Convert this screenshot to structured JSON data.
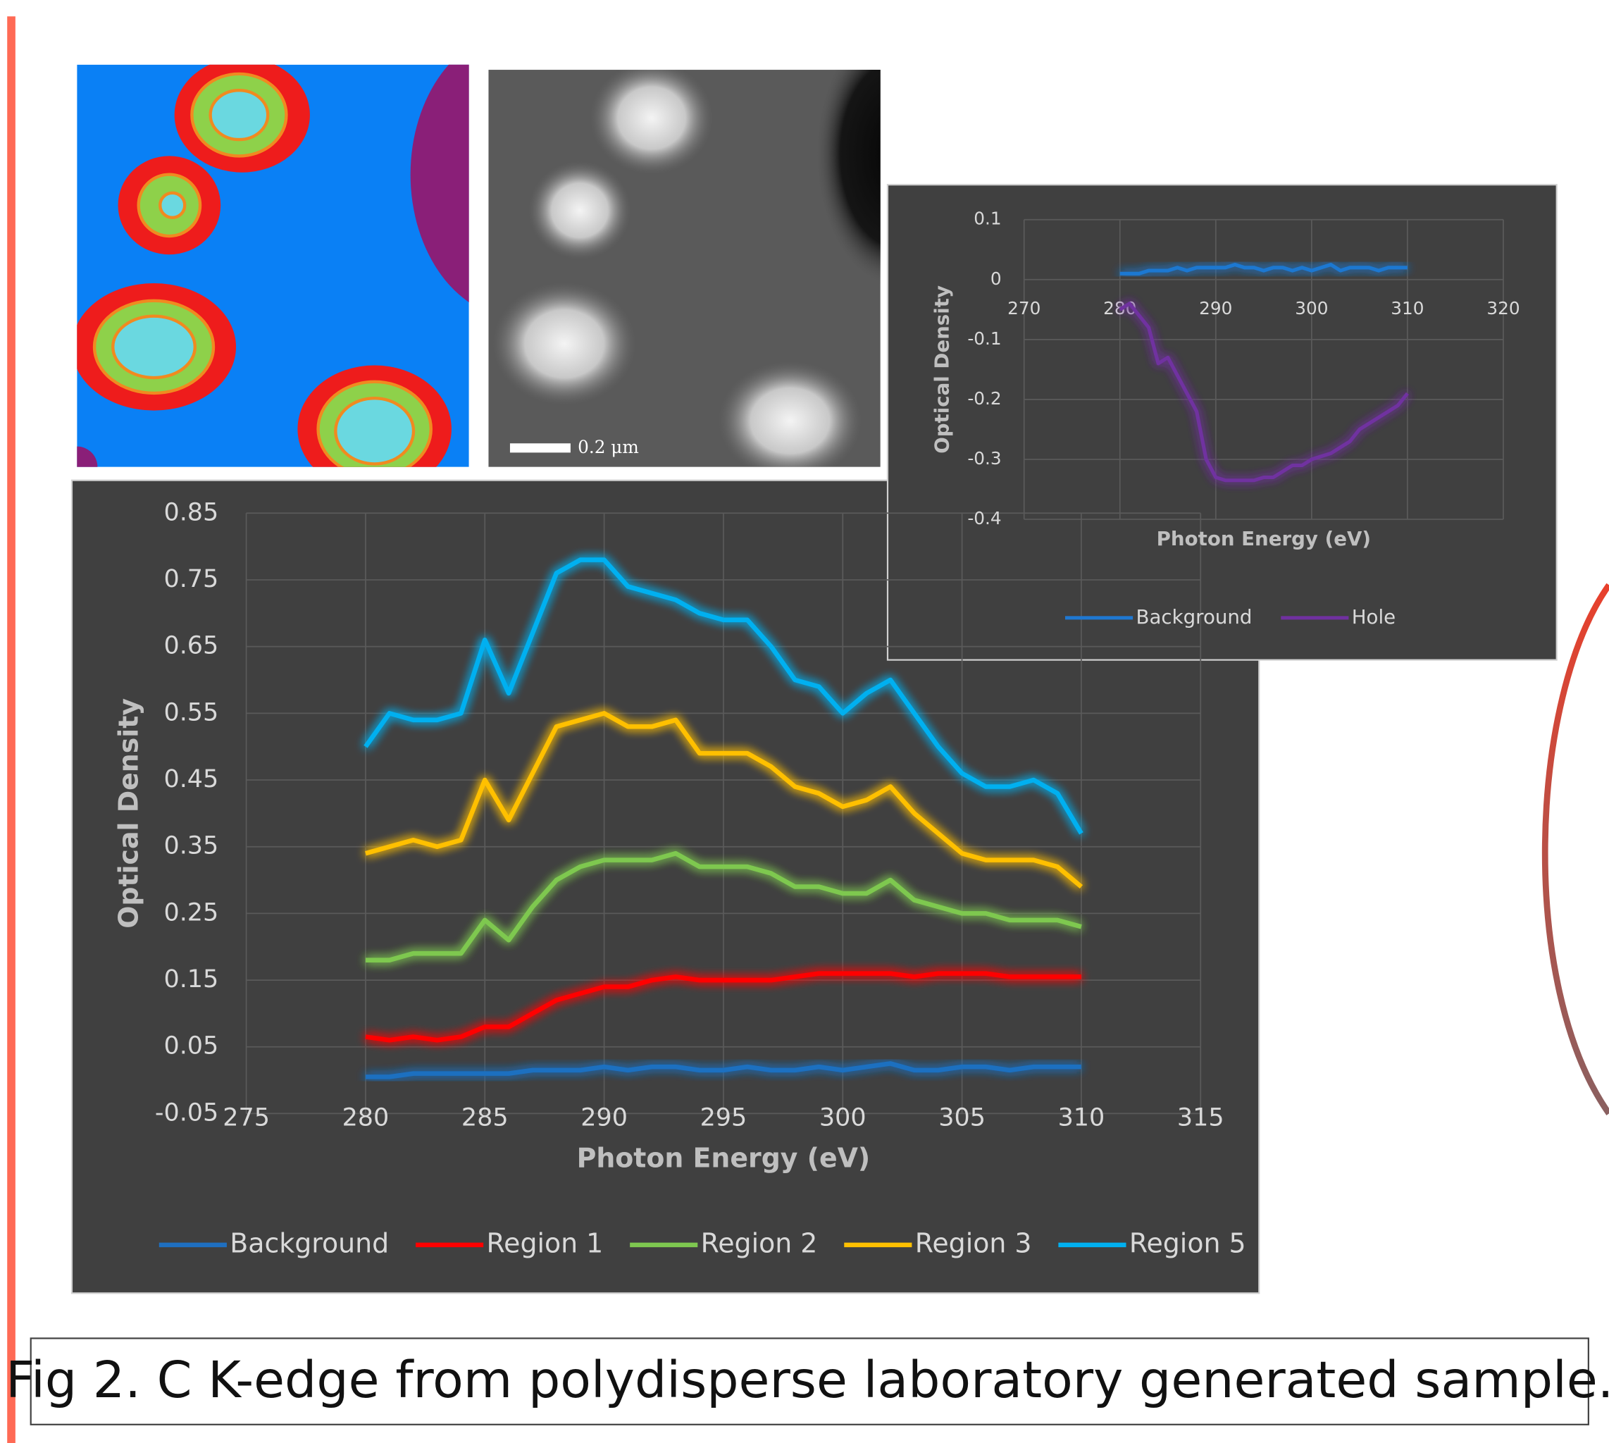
{
  "chart_data": [
    {
      "type": "line",
      "x_title": "Photon Energy (eV)",
      "y_title": "Optical Density",
      "x": [
        280,
        281,
        282,
        283,
        284,
        285,
        286,
        287,
        288,
        289,
        290,
        291,
        292,
        293,
        294,
        295,
        296,
        297,
        298,
        299,
        300,
        301,
        302,
        303,
        304,
        305,
        306,
        307,
        308,
        309,
        310
      ],
      "series": [
        {
          "name": "Background",
          "color": "#1f6fc0",
          "values": [
            0.005,
            0.005,
            0.01,
            0.01,
            0.01,
            0.01,
            0.01,
            0.015,
            0.015,
            0.015,
            0.02,
            0.015,
            0.02,
            0.02,
            0.015,
            0.015,
            0.02,
            0.015,
            0.015,
            0.02,
            0.015,
            0.02,
            0.025,
            0.015,
            0.015,
            0.02,
            0.02,
            0.015,
            0.02,
            0.02,
            0.02
          ]
        },
        {
          "name": "Region 1",
          "color": "#ff0000",
          "values": [
            0.065,
            0.06,
            0.065,
            0.06,
            0.065,
            0.08,
            0.08,
            0.1,
            0.12,
            0.13,
            0.14,
            0.14,
            0.15,
            0.155,
            0.15,
            0.15,
            0.15,
            0.15,
            0.155,
            0.16,
            0.16,
            0.16,
            0.16,
            0.155,
            0.16,
            0.16,
            0.16,
            0.155,
            0.155,
            0.155,
            0.155
          ]
        },
        {
          "name": "Region 2",
          "color": "#7ec850",
          "values": [
            0.18,
            0.18,
            0.19,
            0.19,
            0.19,
            0.24,
            0.21,
            0.26,
            0.3,
            0.32,
            0.33,
            0.33,
            0.33,
            0.34,
            0.32,
            0.32,
            0.32,
            0.31,
            0.29,
            0.29,
            0.28,
            0.28,
            0.3,
            0.27,
            0.26,
            0.25,
            0.25,
            0.24,
            0.24,
            0.24,
            0.23
          ]
        },
        {
          "name": "Region 3",
          "color": "#ffc000",
          "values": [
            0.34,
            0.35,
            0.36,
            0.35,
            0.36,
            0.45,
            0.39,
            0.46,
            0.53,
            0.54,
            0.55,
            0.53,
            0.53,
            0.54,
            0.49,
            0.49,
            0.49,
            0.47,
            0.44,
            0.43,
            0.41,
            0.42,
            0.44,
            0.4,
            0.37,
            0.34,
            0.33,
            0.33,
            0.33,
            0.32,
            0.29
          ]
        },
        {
          "name": "Region 5",
          "color": "#00b0f0",
          "values": [
            0.5,
            0.55,
            0.54,
            0.54,
            0.55,
            0.66,
            0.58,
            0.67,
            0.76,
            0.78,
            0.78,
            0.74,
            0.73,
            0.72,
            0.7,
            0.69,
            0.69,
            0.65,
            0.6,
            0.59,
            0.55,
            0.58,
            0.6,
            0.55,
            0.5,
            0.46,
            0.44,
            0.44,
            0.45,
            0.43,
            0.37
          ]
        }
      ],
      "xlim": [
        275,
        315
      ],
      "xticks": [
        275,
        280,
        285,
        290,
        295,
        300,
        305,
        310,
        315
      ],
      "ylim": [
        -0.05,
        0.85
      ],
      "yticks": [
        -0.05,
        0.05,
        0.15,
        0.25,
        0.35,
        0.45,
        0.55,
        0.65,
        0.75,
        0.85
      ],
      "grid": true,
      "legend": "bottom"
    },
    {
      "type": "line",
      "x_title": "Photon Energy (eV)",
      "y_title": "Optical Density",
      "x": [
        280,
        281,
        282,
        283,
        284,
        285,
        286,
        287,
        288,
        289,
        290,
        291,
        292,
        293,
        294,
        295,
        296,
        297,
        298,
        299,
        300,
        301,
        302,
        303,
        304,
        305,
        306,
        307,
        308,
        309,
        310
      ],
      "series": [
        {
          "name": "Background",
          "color": "#1f78d1",
          "values": [
            0.01,
            0.01,
            0.01,
            0.015,
            0.015,
            0.015,
            0.02,
            0.015,
            0.02,
            0.02,
            0.02,
            0.02,
            0.025,
            0.02,
            0.02,
            0.015,
            0.02,
            0.02,
            0.015,
            0.02,
            0.015,
            0.02,
            0.025,
            0.015,
            0.02,
            0.02,
            0.02,
            0.015,
            0.02,
            0.02,
            0.02
          ]
        },
        {
          "name": "Hole",
          "color": "#7030a0",
          "values": [
            -0.05,
            -0.04,
            -0.06,
            -0.08,
            -0.14,
            -0.13,
            -0.16,
            -0.19,
            -0.22,
            -0.3,
            -0.33,
            -0.335,
            -0.335,
            -0.335,
            -0.335,
            -0.33,
            -0.33,
            -0.32,
            -0.31,
            -0.31,
            -0.3,
            -0.295,
            -0.29,
            -0.28,
            -0.27,
            -0.25,
            -0.24,
            -0.23,
            -0.22,
            -0.21,
            -0.19
          ]
        }
      ],
      "xlim": [
        270,
        320
      ],
      "xticks": [
        270,
        280,
        290,
        300,
        310,
        320
      ],
      "ylim": [
        -0.4,
        0.1
      ],
      "yticks": [
        -0.4,
        -0.3,
        -0.2,
        -0.1,
        0,
        0.1
      ],
      "grid": true,
      "legend": "bottom"
    }
  ],
  "images": {
    "scale_bar_label": "0.2 μm"
  },
  "caption": "Fig 2. C K-edge from polydisperse laboratory generated sample."
}
